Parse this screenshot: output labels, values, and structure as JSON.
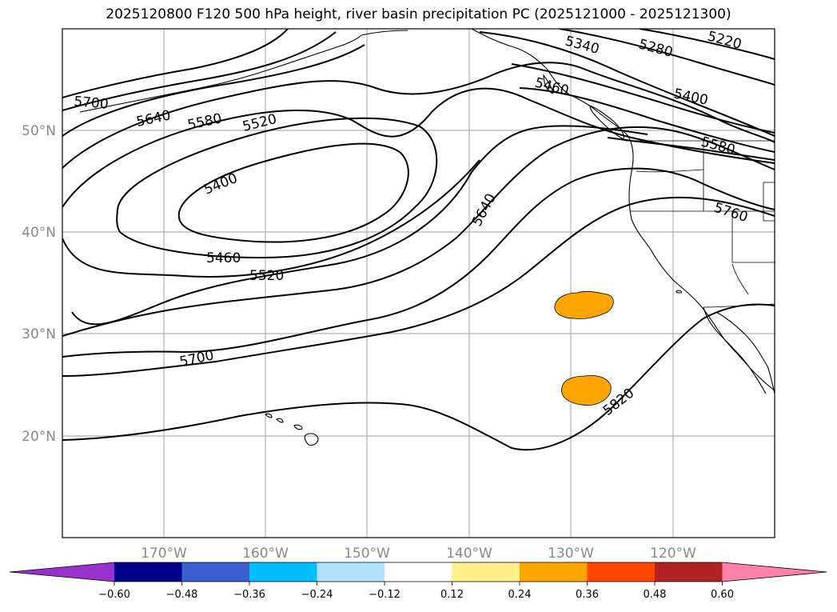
{
  "title": "2025120800 F120 500 hPa height, river basin precipitation PC (2025121000 - 2025121300)",
  "latitude_labels": [
    {
      "lat": 50,
      "text": "50°N"
    },
    {
      "lat": 40,
      "text": "40°N"
    },
    {
      "lat": 30,
      "text": "30°N"
    },
    {
      "lat": 20,
      "text": "20°N"
    }
  ],
  "longitude_labels": [
    {
      "lon": -170,
      "text": "170°W"
    },
    {
      "lon": -160,
      "text": "160°W"
    },
    {
      "lon": -150,
      "text": "150°W"
    },
    {
      "lon": -140,
      "text": "140°W"
    },
    {
      "lon": -130,
      "text": "130°W"
    },
    {
      "lon": -120,
      "text": "120°W"
    }
  ],
  "colorbar": {
    "levels": [
      "-0.60",
      "-0.48",
      "-0.36",
      "-0.24",
      "-0.12",
      "0.12",
      "0.24",
      "0.36",
      "0.48",
      "0.60"
    ],
    "colors": [
      "#9932cc",
      "#00008b",
      "#3a5fcd",
      "#00bfff",
      "#b0e2ff",
      "#ffffff",
      "#fff08a",
      "#ffa500",
      "#ff4500",
      "#b22222",
      "#ff82ab"
    ]
  },
  "height_contour_labels": [
    "5220",
    "5280",
    "5340",
    "5400",
    "5460",
    "5520",
    "5580",
    "5640",
    "5700",
    "5760",
    "5820"
  ],
  "precipitation_blobs": [
    {
      "name": "northern-blob",
      "color": "#ffa500"
    },
    {
      "name": "southern-blob",
      "color": "#ffa500"
    }
  ]
}
